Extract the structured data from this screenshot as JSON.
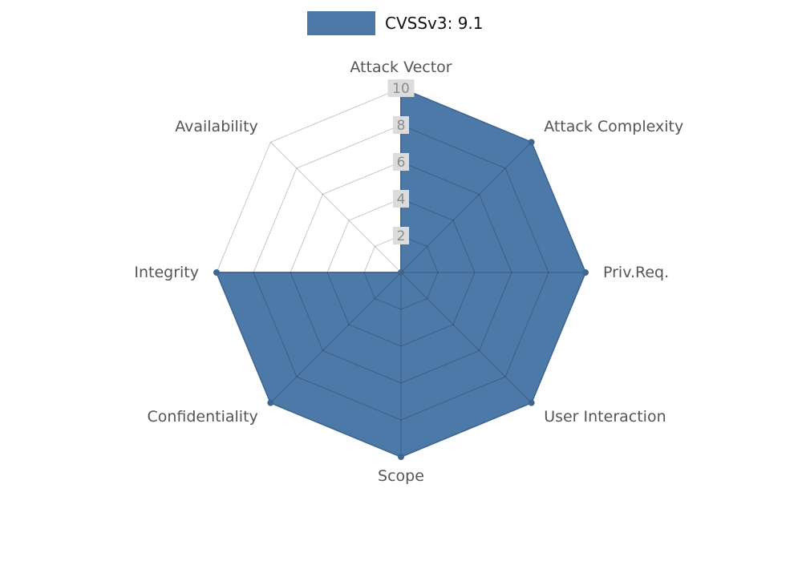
{
  "legend": {
    "label": "CVSSv3: 9.1"
  },
  "colors": {
    "series": "#4d79a8",
    "marker": "#3f668f",
    "grid": "#000000",
    "tick_bg": "#dcdcdc",
    "tick_text": "#8c8c8c",
    "label_text": "#555555",
    "legend_text": "#111111"
  },
  "chart_data": {
    "type": "radar",
    "title": "",
    "categories": [
      "Attack Vector",
      "Attack Complexity",
      "Priv.Req.",
      "User Interaction",
      "Scope",
      "Confidentiality",
      "Integrity",
      "Availability"
    ],
    "series": [
      {
        "name": "CVSSv3: 9.1",
        "values": [
          10,
          10,
          10,
          10,
          10,
          10,
          10,
          0
        ]
      }
    ],
    "ticks": [
      2,
      4,
      6,
      8,
      10
    ],
    "rlim": [
      0,
      10
    ],
    "grid": true,
    "legend_position": "top-center"
  }
}
